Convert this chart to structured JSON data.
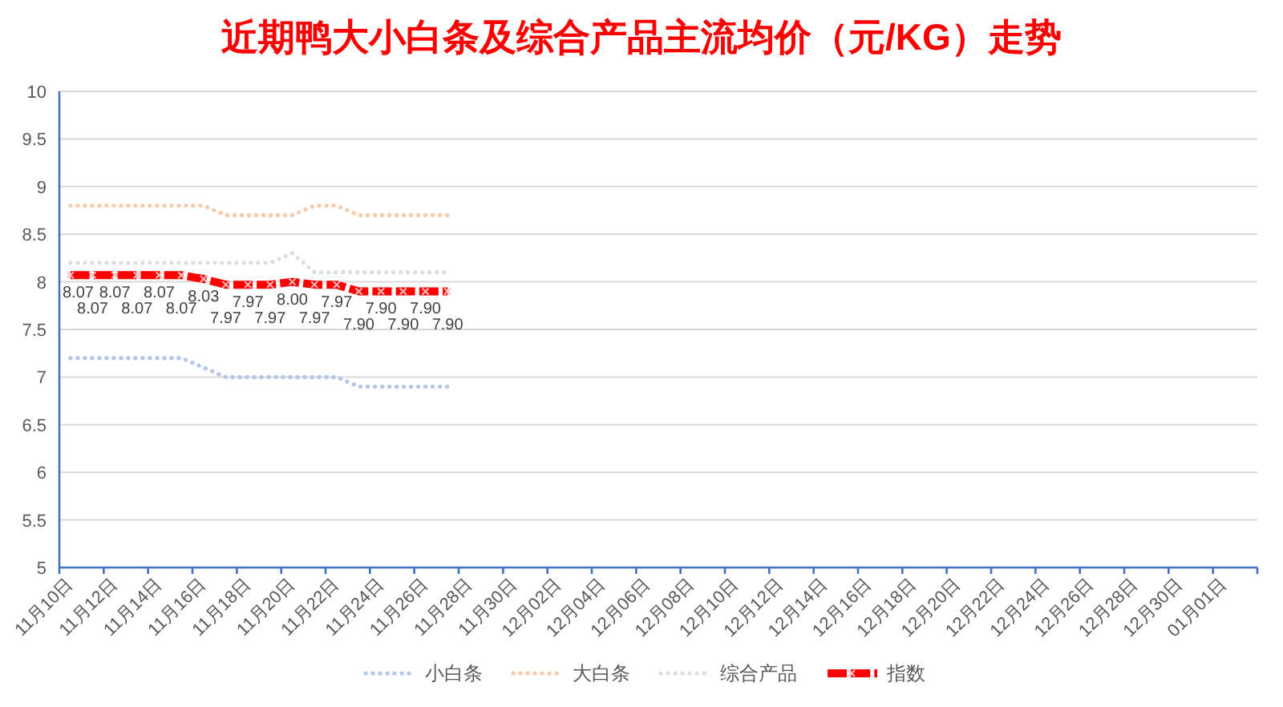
{
  "chart_data": {
    "type": "line",
    "title": "近期鸭大小白条及综合产品主流均价（元/KG）走势",
    "categories": [
      "11月10日",
      null,
      "11月12日",
      null,
      "11月14日",
      null,
      "11月16日",
      null,
      "11月18日",
      null,
      "11月20日",
      null,
      "11月22日",
      null,
      "11月24日",
      null,
      "11月26日",
      null,
      "11月28日",
      null,
      "11月30日",
      null,
      "12月02日",
      null,
      "12月04日",
      null,
      "12月06日",
      null,
      "12月08日",
      null,
      "12月10日",
      null,
      "12月12日",
      null,
      "12月14日",
      null,
      "12月16日",
      null,
      "12月18日",
      null,
      "12月20日",
      null,
      "12月22日",
      null,
      "12月24日",
      null,
      "12月26日",
      null,
      "12月28日",
      null,
      "12月30日",
      null,
      "01月01日",
      null
    ],
    "series": [
      {
        "name": "小白条",
        "color": "#b4c7e7",
        "line_style": "dotted",
        "values": [
          7.2,
          7.2,
          7.2,
          7.2,
          7.2,
          7.2,
          7.1,
          7.0,
          7.0,
          7.0,
          7.0,
          7.0,
          7.0,
          6.9,
          6.9,
          6.9,
          6.9,
          6.9,
          null,
          null,
          null,
          null,
          null,
          null,
          null,
          null,
          null,
          null,
          null,
          null,
          null,
          null,
          null,
          null,
          null,
          null,
          null,
          null,
          null,
          null,
          null,
          null,
          null,
          null,
          null,
          null,
          null,
          null,
          null,
          null,
          null,
          null,
          null,
          null
        ]
      },
      {
        "name": "大白条",
        "color": "#f8cbad",
        "line_style": "dotted",
        "values": [
          8.8,
          8.8,
          8.8,
          8.8,
          8.8,
          8.8,
          8.8,
          8.7,
          8.7,
          8.7,
          8.7,
          8.8,
          8.8,
          8.7,
          8.7,
          8.7,
          8.7,
          8.7,
          null,
          null,
          null,
          null,
          null,
          null,
          null,
          null,
          null,
          null,
          null,
          null,
          null,
          null,
          null,
          null,
          null,
          null,
          null,
          null,
          null,
          null,
          null,
          null,
          null,
          null,
          null,
          null,
          null,
          null,
          null,
          null,
          null,
          null,
          null,
          null
        ]
      },
      {
        "name": "综合产品",
        "color": "#dedede",
        "line_style": "dotted",
        "values": [
          8.2,
          8.2,
          8.2,
          8.2,
          8.2,
          8.2,
          8.2,
          8.2,
          8.2,
          8.2,
          8.3,
          8.1,
          8.1,
          8.1,
          8.1,
          8.1,
          8.1,
          8.1,
          null,
          null,
          null,
          null,
          null,
          null,
          null,
          null,
          null,
          null,
          null,
          null,
          null,
          null,
          null,
          null,
          null,
          null,
          null,
          null,
          null,
          null,
          null,
          null,
          null,
          null,
          null,
          null,
          null,
          null,
          null,
          null,
          null,
          null,
          null,
          null
        ]
      },
      {
        "name": "指数",
        "color": "#ff0000",
        "line_style": "dashed",
        "marker": "cross",
        "values": [
          8.07,
          8.07,
          8.07,
          8.07,
          8.07,
          8.07,
          8.03,
          7.97,
          7.97,
          7.97,
          8.0,
          7.97,
          7.97,
          7.9,
          7.9,
          7.9,
          7.9,
          7.9,
          null,
          null,
          null,
          null,
          null,
          null,
          null,
          null,
          null,
          null,
          null,
          null,
          null,
          null,
          null,
          null,
          null,
          null,
          null,
          null,
          null,
          null,
          null,
          null,
          null,
          null,
          null,
          null,
          null,
          null,
          null,
          null,
          null,
          null,
          null,
          null
        ],
        "value_labels": [
          "8.07",
          "8.07",
          "8.07",
          "8.07",
          "8.07",
          "8.07",
          "8.03",
          "7.97",
          "7.97",
          "7.97",
          "8.00",
          "7.97",
          "7.97",
          "7.90",
          "7.90",
          "7.90",
          "7.90",
          "7.90",
          null,
          null,
          null,
          null,
          null,
          null,
          null,
          null,
          null,
          null,
          null,
          null,
          null,
          null,
          null,
          null,
          null,
          null,
          null,
          null,
          null,
          null,
          null,
          null,
          null,
          null,
          null,
          null,
          null,
          null,
          null,
          null,
          null,
          null,
          null,
          null
        ]
      }
    ],
    "ylim": [
      5,
      10
    ],
    "yticks": [
      5,
      5.5,
      6,
      6.5,
      7,
      7.5,
      8,
      8.5,
      9,
      9.5,
      10
    ],
    "grid": "y",
    "legend": "bottom"
  }
}
